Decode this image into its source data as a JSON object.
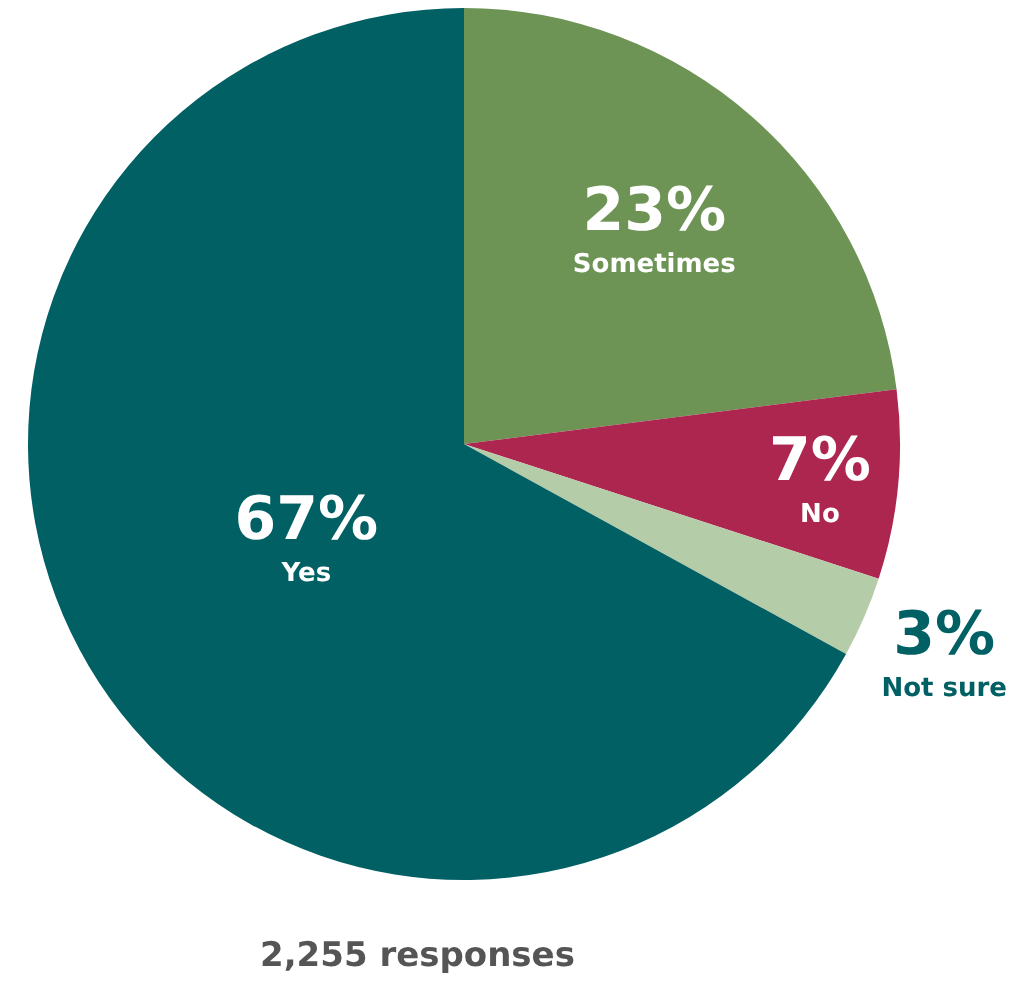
{
  "chart_data": {
    "type": "pie",
    "categories": [
      "Sometimes",
      "No",
      "Not sure",
      "Yes"
    ],
    "values": [
      23,
      7,
      3,
      67
    ],
    "value_labels": [
      "23%",
      "7%",
      "3%",
      "67%"
    ],
    "colors": [
      "#6e9455",
      "#ad2650",
      "#b5cca8",
      "#006064"
    ],
    "annotations": [
      "2,255 responses"
    ]
  }
}
